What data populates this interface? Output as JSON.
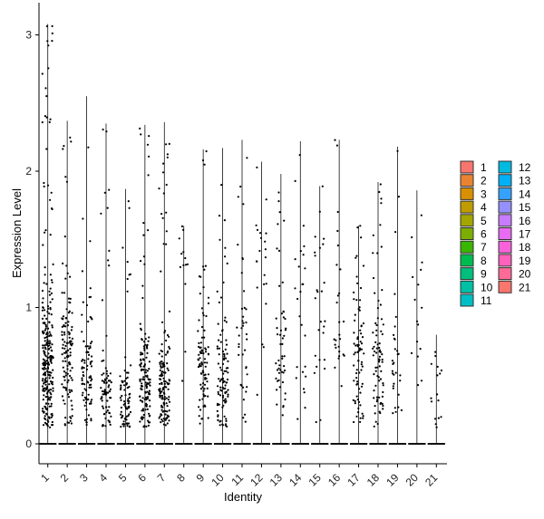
{
  "chart_data": {
    "type": "violin",
    "xlabel": "Identity",
    "ylabel": "Expression Level",
    "categories": [
      "1",
      "2",
      "3",
      "4",
      "5",
      "6",
      "7",
      "8",
      "9",
      "10",
      "11",
      "12",
      "13",
      "14",
      "15",
      "16",
      "17",
      "18",
      "19",
      "20",
      "21"
    ],
    "y_ticks": [
      0,
      1,
      2,
      3
    ],
    "ylim": [
      -0.15,
      3.25
    ],
    "grid": false,
    "legend": {
      "position": "right",
      "columns": 2
    },
    "series_max": [
      3.08,
      2.37,
      2.55,
      2.35,
      1.87,
      2.34,
      2.36,
      1.6,
      2.16,
      2.17,
      2.23,
      2.07,
      1.98,
      2.22,
      1.89,
      2.23,
      1.6,
      1.92,
      2.18,
      1.86,
      0.8
    ],
    "series_dot_density": [
      1.0,
      0.5,
      0.35,
      0.3,
      0.3,
      0.55,
      0.55,
      0.05,
      0.35,
      0.4,
      0.15,
      0.08,
      0.2,
      0.1,
      0.1,
      0.1,
      0.3,
      0.3,
      0.12,
      0.06,
      0.06
    ],
    "series_dot_median": [
      0.55,
      0.6,
      0.5,
      0.35,
      0.3,
      0.45,
      0.4,
      1.1,
      0.5,
      0.5,
      0.8,
      1.2,
      0.6,
      0.9,
      1.0,
      0.7,
      0.6,
      0.5,
      0.5,
      0.8,
      0.4
    ],
    "colors": [
      "#F8766D",
      "#EA8331",
      "#D89000",
      "#C09B00",
      "#A3A500",
      "#7CAE00",
      "#39B600",
      "#00BB4E",
      "#00BF7D",
      "#00C1A3",
      "#00BFC4",
      "#00BAE0",
      "#00B0F6",
      "#35A2FF",
      "#9590FF",
      "#C77CFF",
      "#E76BF3",
      "#FA62DB",
      "#FF62BC",
      "#FF6A98",
      "#F8766D"
    ]
  }
}
